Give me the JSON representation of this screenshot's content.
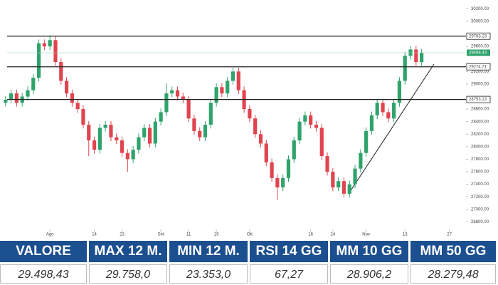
{
  "chart_data": {
    "type": "candlestick",
    "up_color": "#2ea36b",
    "down_color": "#e0454f",
    "xlim": [
      -1,
      83
    ],
    "ylim": [
      26680,
      30340
    ],
    "xticks": [
      {
        "value": 8,
        "label": "Ago"
      },
      {
        "value": 16,
        "label": "14"
      },
      {
        "value": 21,
        "label": "23"
      },
      {
        "value": 28,
        "label": "Set"
      },
      {
        "value": 33,
        "label": "11"
      },
      {
        "value": 38,
        "label": "19"
      },
      {
        "value": 44,
        "label": "Ott"
      },
      {
        "value": 55,
        "label": "16"
      },
      {
        "value": 59,
        "label": "24"
      },
      {
        "value": 65,
        "label": "Nov"
      },
      {
        "value": 72,
        "label": "13"
      },
      {
        "value": 80,
        "label": "27"
      }
    ],
    "yticks": [
      {
        "value": 30200,
        "label": "30200.00"
      },
      {
        "value": 30000,
        "label": "30000.00"
      },
      {
        "value": 29600,
        "label": "29600.00"
      },
      {
        "value": 29200,
        "label": "29200.00"
      },
      {
        "value": 29000,
        "label": "29000.00"
      },
      {
        "value": 28600,
        "label": "28600.00"
      },
      {
        "value": 28400,
        "label": "28400.00"
      },
      {
        "value": 28200,
        "label": "28200.00"
      },
      {
        "value": 28000,
        "label": "28000.00"
      },
      {
        "value": 27800,
        "label": "27800.00"
      },
      {
        "value": 27600,
        "label": "27600.00"
      },
      {
        "value": 27400,
        "label": "27400.00"
      },
      {
        "value": 27200,
        "label": "27200.00"
      },
      {
        "value": 27000,
        "label": "27000.00"
      },
      {
        "value": 26800,
        "label": "26800.00"
      }
    ],
    "levels": [
      29763.23,
      29274.71,
      28753.13
    ],
    "last_price": 29498.43,
    "open": [
      28700,
      28750,
      28850,
      28700,
      28800,
      28900,
      29100,
      29650,
      29600,
      29700,
      29350,
      29050,
      28850,
      28700,
      28600,
      28350,
      28100,
      27950,
      28300,
      28350,
      28150,
      28100,
      27900,
      27800,
      27950,
      28150,
      28300,
      28050,
      28400,
      28550,
      28850,
      28900,
      28800,
      28750,
      28450,
      28250,
      28150,
      28350,
      28700,
      28950,
      28850,
      29050,
      29200,
      28900,
      28600,
      28450,
      28200,
      28050,
      27750,
      27500,
      27350,
      27500,
      27800,
      28100,
      28400,
      28500,
      28350,
      28300,
      27850,
      27600,
      27350,
      27450,
      27250,
      27400,
      27650,
      27900,
      28250,
      28500,
      28700,
      28550,
      28450,
      28700,
      29050,
      29450,
      29550,
      29350
    ],
    "high": [
      28810,
      28910,
      28910,
      28860,
      28960,
      29160,
      29710,
      29710,
      29780,
      29760,
      29410,
      29110,
      28910,
      28760,
      28660,
      28410,
      28160,
      28360,
      28410,
      28410,
      28210,
      28160,
      27960,
      28010,
      28210,
      28360,
      28360,
      28460,
      28610,
      29010,
      28960,
      28960,
      28860,
      28810,
      28510,
      28310,
      28410,
      28760,
      29010,
      29010,
      29110,
      29260,
      29260,
      28960,
      28660,
      28510,
      28260,
      28110,
      27810,
      27560,
      27560,
      27860,
      28160,
      28460,
      28560,
      28560,
      28410,
      28360,
      27910,
      27660,
      27510,
      27510,
      27460,
      27710,
      27960,
      28310,
      28560,
      28760,
      28760,
      28610,
      28760,
      29110,
      29510,
      29610,
      29610,
      29560
    ],
    "low": [
      28640,
      28690,
      28640,
      28640,
      28740,
      28840,
      29040,
      29540,
      29540,
      29290,
      28990,
      28790,
      28640,
      28540,
      28290,
      27850,
      27890,
      27890,
      28240,
      28090,
      28040,
      27840,
      27600,
      27740,
      27890,
      28090,
      27990,
      27990,
      28340,
      28490,
      28790,
      28740,
      28690,
      28390,
      28190,
      28090,
      28090,
      28290,
      28640,
      28790,
      28790,
      28990,
      28840,
      28540,
      28390,
      28140,
      27990,
      27690,
      27440,
      27150,
      27290,
      27440,
      27740,
      28040,
      28340,
      28290,
      28240,
      27790,
      27540,
      27290,
      27290,
      27190,
      27190,
      27340,
      27590,
      27840,
      28190,
      28440,
      28490,
      28390,
      28390,
      28640,
      28990,
      29390,
      29290,
      29290
    ],
    "close": [
      28750,
      28850,
      28700,
      28800,
      28900,
      29100,
      29650,
      29600,
      29700,
      29350,
      29050,
      28850,
      28700,
      28600,
      28350,
      28100,
      27950,
      28300,
      28350,
      28150,
      28100,
      27900,
      27800,
      27950,
      28150,
      28300,
      28050,
      28400,
      28550,
      28850,
      28900,
      28800,
      28750,
      28450,
      28250,
      28150,
      28350,
      28700,
      28950,
      28850,
      29050,
      29200,
      28900,
      28600,
      28450,
      28200,
      28050,
      27750,
      27500,
      27350,
      27500,
      27800,
      28100,
      28400,
      28500,
      28350,
      28300,
      27850,
      27600,
      27350,
      27450,
      27250,
      27400,
      27650,
      27900,
      28250,
      28500,
      28700,
      28550,
      28450,
      28700,
      29050,
      29450,
      29550,
      29350,
      29498.43
    ]
  },
  "table": {
    "headers": [
      "VALORE",
      "MAX 12 M.",
      "MIN 12 M.",
      "RSI 14 GG",
      "MM 10 GG",
      "MM 50 GG"
    ],
    "values": [
      "29.498,43",
      "29.758,0",
      "23.353,0",
      "67,27",
      "28.906,2",
      "28.279,48"
    ]
  }
}
